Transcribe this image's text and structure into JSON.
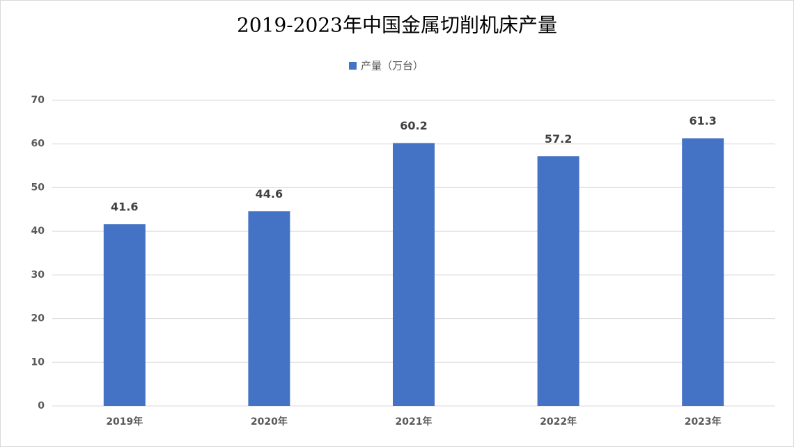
{
  "chart_data": {
    "type": "bar",
    "title": "2019-2023年中国金属切削机床产量",
    "categories": [
      "2019年",
      "2020年",
      "2021年",
      "2022年",
      "2023年"
    ],
    "series": [
      {
        "name": "产量（万台）",
        "color": "#4472c4",
        "values": [
          41.6,
          44.6,
          60.2,
          57.2,
          61.3
        ]
      }
    ],
    "ylim": [
      0,
      70
    ],
    "yticks": [
      0,
      10,
      20,
      30,
      40,
      50,
      60,
      70
    ],
    "grid": true,
    "legend": "top"
  }
}
